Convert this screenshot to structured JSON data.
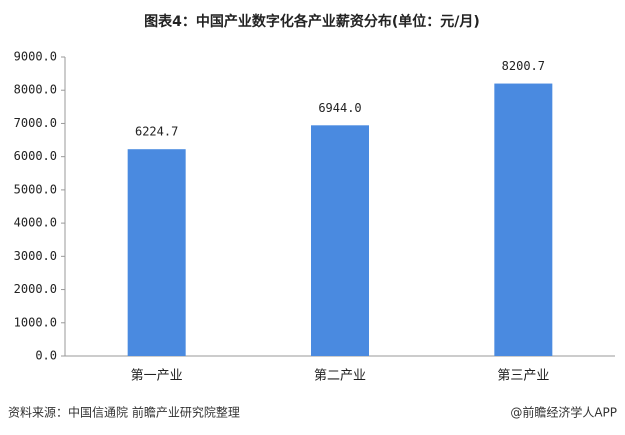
{
  "chart_data": {
    "type": "bar",
    "title": "图表4：中国产业数字化各产业薪资分布(单位：元/月)",
    "categories": [
      "第一产业",
      "第二产业",
      "第三产业"
    ],
    "values": [
      6224.7,
      6944.0,
      8200.7
    ],
    "value_labels": [
      "6224.7",
      "6944.0",
      "8200.7"
    ],
    "color": "#4a8ae0",
    "ylim": [
      0,
      9000
    ],
    "yticks": [
      {
        "value": 0,
        "label": "0.0"
      },
      {
        "value": 1000,
        "label": "1000.0"
      },
      {
        "value": 2000,
        "label": "2000.0"
      },
      {
        "value": 3000,
        "label": "3000.0"
      },
      {
        "value": 4000,
        "label": "4000.0"
      },
      {
        "value": 5000,
        "label": "5000.0"
      },
      {
        "value": 6000,
        "label": "6000.0"
      },
      {
        "value": 7000,
        "label": "7000.0"
      },
      {
        "value": 8000,
        "label": "8000.0"
      },
      {
        "value": 9000,
        "label": "9000.0"
      }
    ],
    "grid": false,
    "source": "资料来源：中国信通院 前瞻产业研究院整理",
    "credit": "@前瞻经济学人APP"
  }
}
